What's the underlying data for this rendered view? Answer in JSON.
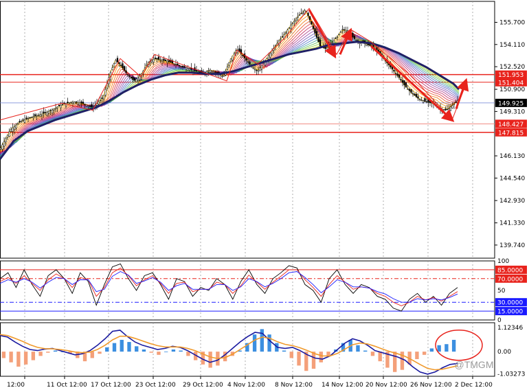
{
  "chart_data": [
    {
      "type": "candlestick",
      "panel": "price",
      "ylim": [
        138.8,
        157.2
      ],
      "y_ticks": [
        "155.700",
        "154.110",
        "152.520",
        "150.900",
        "149.310",
        "146.130",
        "144.540",
        "142.930",
        "141.330",
        "139.740"
      ],
      "y_tick_values": [
        155.7,
        154.11,
        152.52,
        150.9,
        149.31,
        146.13,
        144.54,
        142.93,
        141.33,
        139.74
      ],
      "current_price": {
        "label": "149.925",
        "value": 149.925
      },
      "horizontal_levels": [
        {
          "label": "151.953",
          "value": 151.953,
          "color": "#e8231c",
          "width": 1.5
        },
        {
          "label": "151.404",
          "value": 151.404,
          "color": "#e8231c",
          "width": 1
        },
        {
          "label": "148.427",
          "value": 148.427,
          "color": "#f08a80",
          "width": 1
        },
        {
          "label": "147.815",
          "value": 147.815,
          "color": "#e8231c",
          "width": 1.5
        }
      ],
      "path_x": [
        0,
        15,
        30,
        45,
        60,
        75,
        90,
        105,
        120,
        135,
        150,
        160,
        168,
        176,
        185,
        195,
        205,
        215,
        225,
        235,
        245,
        255,
        265,
        275,
        285,
        295,
        305,
        315,
        325,
        335,
        345,
        355,
        365,
        375,
        385,
        395,
        405,
        415,
        425,
        435,
        445,
        450,
        458,
        466,
        474,
        482,
        490,
        498,
        506,
        514,
        522,
        530,
        540,
        550,
        560,
        570,
        580,
        590,
        600,
        610,
        620,
        630,
        640,
        650,
        660,
        666
      ],
      "path_y": [
        146.6,
        148.0,
        148.6,
        148.9,
        149.1,
        149.4,
        149.8,
        150.0,
        149.9,
        149.6,
        150.3,
        152.0,
        153.0,
        152.6,
        152.0,
        151.5,
        151.9,
        152.8,
        153.1,
        153.0,
        152.9,
        152.7,
        152.5,
        152.4,
        152.2,
        152.0,
        152.3,
        152.1,
        151.8,
        153.0,
        153.8,
        153.2,
        152.6,
        152.2,
        152.9,
        153.6,
        154.3,
        154.9,
        155.6,
        156.2,
        156.6,
        156.0,
        155.0,
        154.0,
        153.8,
        154.2,
        154.6,
        155.2,
        155.1,
        154.6,
        154.3,
        154.2,
        154.0,
        153.6,
        153.0,
        152.4,
        151.8,
        151.1,
        150.6,
        150.2,
        150.0,
        149.9,
        149.5,
        149.4,
        149.8,
        150.1
      ],
      "ma_color": "#1f1f66",
      "ma_x": [
        0,
        20,
        40,
        60,
        80,
        100,
        120,
        140,
        160,
        180,
        200,
        220,
        240,
        260,
        280,
        300,
        320,
        340,
        360,
        380,
        400,
        420,
        440,
        460,
        480,
        500,
        520,
        540,
        560,
        580,
        600,
        620,
        640,
        660,
        668
      ],
      "ma_y": [
        145.9,
        147.2,
        147.9,
        148.3,
        148.7,
        149.0,
        149.3,
        149.6,
        150.1,
        150.7,
        151.2,
        151.6,
        151.9,
        152.1,
        152.1,
        152.0,
        152.0,
        152.2,
        152.5,
        152.8,
        153.1,
        153.4,
        153.6,
        153.8,
        154.1,
        154.2,
        154.3,
        154.2,
        153.9,
        153.5,
        153.0,
        152.5,
        151.9,
        151.3,
        150.9
      ],
      "annotation_arrows": [
        {
          "from": [
            450,
            156.6
          ],
          "to": [
            487,
            153.3
          ]
        },
        {
          "from": [
            495,
            153.4
          ],
          "to": [
            510,
            155.1
          ]
        },
        {
          "from": [
            540,
            154.0
          ],
          "to": [
            658,
            148.7
          ]
        },
        {
          "from": [
            664,
            149.5
          ],
          "to": [
            678,
            151.5
          ]
        }
      ],
      "zigzag_x": [
        0,
        30,
        90,
        135,
        175,
        205,
        225,
        330,
        345,
        375,
        415,
        450,
        490,
        510,
        540,
        600,
        658,
        680
      ],
      "zigzag_y": [
        148.7,
        149.1,
        149.9,
        149.4,
        153.1,
        151.8,
        153.4,
        151.5,
        153.7,
        152.7,
        154.6,
        156.7,
        153.4,
        155.2,
        154.3,
        151.8,
        148.7,
        151.5
      ]
    },
    {
      "type": "line",
      "panel": "stochastic",
      "ylim": [
        0,
        100
      ],
      "y_ticks": [
        "100",
        "50",
        "0"
      ],
      "y_tick_values": [
        100,
        50,
        0
      ],
      "levels": [
        {
          "label": "85.0000",
          "value": 85,
          "color": "#e8231c",
          "style": "solid"
        },
        {
          "label": "70.0000",
          "value": 70,
          "color": "#e8231c",
          "style": "dashdot"
        },
        {
          "label": "30.0000",
          "value": 30,
          "color": "#1a1aff",
          "style": "dashdot"
        },
        {
          "label": "15.0000",
          "value": 15,
          "color": "#1a1aff",
          "style": "solid"
        }
      ],
      "series": [
        {
          "color": "#000000",
          "values": [
            70,
            80,
            55,
            85,
            60,
            40,
            75,
            85,
            70,
            45,
            80,
            65,
            25,
            60,
            90,
            95,
            70,
            50,
            75,
            80,
            60,
            35,
            70,
            65,
            40,
            55,
            50,
            70,
            60,
            35,
            65,
            85,
            60,
            45,
            70,
            80,
            92,
            88,
            60,
            50,
            30,
            70,
            85,
            60,
            45,
            60,
            55,
            40,
            35,
            20,
            15,
            35,
            45,
            30,
            40,
            25,
            45,
            55
          ]
        },
        {
          "color": "#e8231c",
          "values": [
            65,
            72,
            62,
            75,
            62,
            50,
            68,
            78,
            70,
            55,
            72,
            68,
            40,
            55,
            80,
            88,
            75,
            58,
            68,
            75,
            62,
            45,
            62,
            64,
            48,
            52,
            52,
            64,
            60,
            45,
            58,
            76,
            64,
            52,
            64,
            74,
            85,
            85,
            68,
            55,
            40,
            60,
            75,
            64,
            52,
            56,
            54,
            45,
            40,
            30,
            24,
            30,
            40,
            34,
            38,
            32,
            40,
            48
          ]
        },
        {
          "color": "#1a1aff",
          "values": [
            62,
            68,
            64,
            70,
            64,
            54,
            64,
            72,
            70,
            60,
            68,
            68,
            48,
            52,
            74,
            82,
            76,
            62,
            66,
            72,
            64,
            50,
            58,
            62,
            52,
            52,
            52,
            60,
            60,
            50,
            56,
            70,
            65,
            56,
            62,
            70,
            80,
            82,
            72,
            60,
            46,
            56,
            68,
            64,
            56,
            56,
            54,
            48,
            44,
            36,
            30,
            30,
            36,
            34,
            36,
            34,
            38,
            44
          ]
        }
      ]
    },
    {
      "type": "bar",
      "panel": "macd",
      "ylim": [
        -1.15,
        1.35
      ],
      "y_ticks": [
        "1.12346",
        "0.00",
        "-1.03273"
      ],
      "y_tick_values": [
        1.12346,
        0,
        -1.03273
      ],
      "hist_pos_color": "#3c8fe0",
      "hist_neg_color": "#f4a07a",
      "histogram": [
        -0.3,
        -0.5,
        -0.7,
        -0.6,
        -0.4,
        -0.2,
        -0.05,
        0.05,
        0.0,
        -0.1,
        -0.3,
        -0.45,
        -0.3,
        -0.1,
        0.2,
        0.4,
        0.55,
        0.45,
        0.25,
        0.1,
        -0.05,
        -0.15,
        0.0,
        0.1,
        0.05,
        -0.2,
        -0.4,
        -0.6,
        -0.75,
        -0.65,
        -0.45,
        -0.2,
        0.05,
        0.4,
        0.8,
        1.05,
        0.8,
        0.4,
        0.05,
        -0.3,
        -0.65,
        -0.9,
        -0.8,
        -0.5,
        -0.2,
        0.1,
        0.4,
        0.55,
        0.3,
        0.05,
        -0.2,
        -0.45,
        -0.75,
        -0.95,
        -0.85,
        -0.6,
        -0.35,
        -0.15,
        0.15,
        0.3,
        0.35,
        0.55
      ],
      "series": [
        {
          "color": "#1a1aa0",
          "values": [
            0.75,
            0.68,
            0.45,
            0.25,
            0.1,
            0.05,
            0.12,
            0.15,
            0.05,
            -0.05,
            -0.15,
            -0.1,
            0.05,
            0.3,
            0.6,
            0.95,
            1.0,
            0.7,
            0.45,
            0.3,
            0.2,
            0.1,
            0.15,
            0.25,
            0.2,
            0.05,
            -0.15,
            -0.35,
            -0.5,
            -0.4,
            -0.15,
            0.15,
            0.45,
            0.7,
            0.9,
            0.85,
            0.5,
            0.2,
            0.15,
            0.2,
            0.05,
            -0.15,
            -0.3,
            -0.35,
            -0.2,
            0.1,
            0.4,
            0.6,
            0.5,
            0.3,
            0.05,
            -0.05,
            -0.15,
            -0.25,
            -0.4,
            -0.7,
            -0.95,
            -1.05,
            -0.95,
            -0.75,
            -0.6,
            -0.55
          ]
        },
        {
          "color": "#f09a2c",
          "values": [
            0.8,
            0.75,
            0.62,
            0.48,
            0.32,
            0.2,
            0.14,
            0.13,
            0.1,
            0.05,
            -0.02,
            -0.05,
            -0.02,
            0.1,
            0.3,
            0.55,
            0.72,
            0.72,
            0.62,
            0.5,
            0.38,
            0.28,
            0.22,
            0.22,
            0.22,
            0.15,
            0.05,
            -0.1,
            -0.25,
            -0.32,
            -0.28,
            -0.12,
            0.1,
            0.32,
            0.55,
            0.68,
            0.62,
            0.46,
            0.34,
            0.28,
            0.18,
            0.05,
            -0.1,
            -0.2,
            -0.2,
            -0.08,
            0.12,
            0.32,
            0.4,
            0.36,
            0.25,
            0.12,
            0.0,
            -0.1,
            -0.22,
            -0.4,
            -0.6,
            -0.78,
            -0.85,
            -0.82,
            -0.74,
            -0.66
          ]
        }
      ]
    }
  ],
  "x_axis": {
    "labels": [
      "12:00",
      "11 Oct 12:00",
      "17 Oct 12:00",
      "23 Oct 12:00",
      "29 Oct 12:00",
      "4 Nov 12:00",
      "8 Nov 12:00",
      "14 Nov 12:00",
      "20 Nov 12:00",
      "26 Nov 12:00",
      "2 Dec 12:00"
    ],
    "label_x": [
      10,
      68,
      132,
      197,
      266,
      331,
      400,
      468,
      532,
      597,
      662
    ]
  },
  "watermark": "@TMGM",
  "colors": {
    "candle": "#000000",
    "grid": "#9a9a9a",
    "tag_red": "#e8231c",
    "tag_blue": "#1a1aff",
    "tag_black": "#000000"
  }
}
